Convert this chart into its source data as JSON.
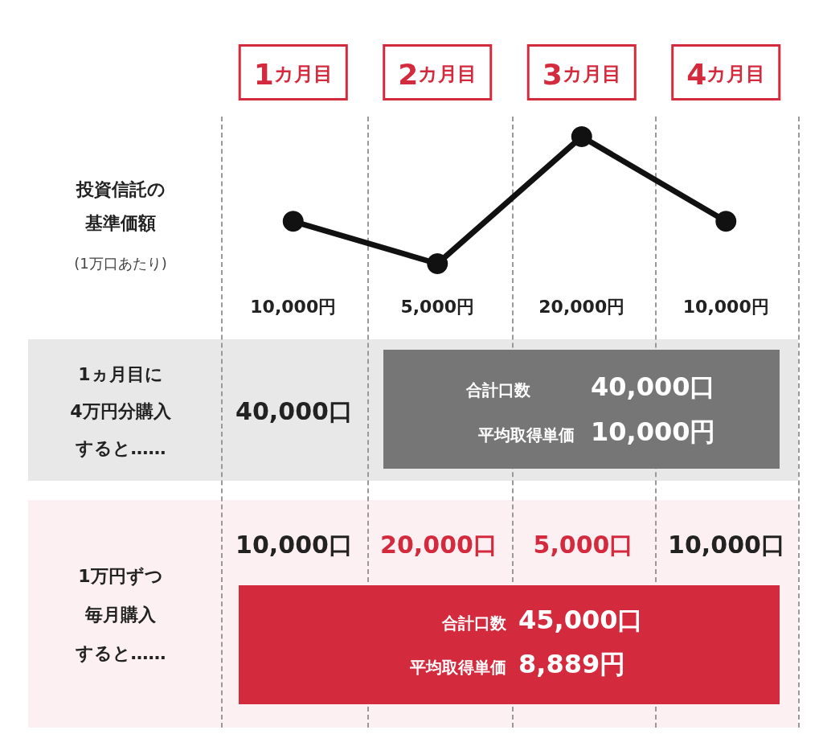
{
  "chart_data": {
    "type": "line",
    "categories": [
      "1カ月目",
      "2カ月目",
      "3カ月目",
      "4カ月目"
    ],
    "values": [
      10000,
      5000,
      20000,
      10000
    ],
    "color": "#111111",
    "marker": "circle",
    "value_labels": [
      "10,000円",
      "5,000円",
      "20,000円",
      "10,000円"
    ],
    "annotations": [
      "投資信託の",
      "基準価額",
      "(1万口あたり)",
      "1ヵ月目に",
      "4万円分購入",
      "すると……",
      "40,000口",
      "合計口数",
      "40,000口",
      "平均取得単価",
      "10,000円",
      "1万円ずつ",
      "毎月購入",
      "すると……",
      "10,000口",
      "20,000口",
      "5,000口",
      "10,000口",
      "合計口数",
      "45,000口",
      "平均取得単価",
      "8,889円"
    ]
  }
}
